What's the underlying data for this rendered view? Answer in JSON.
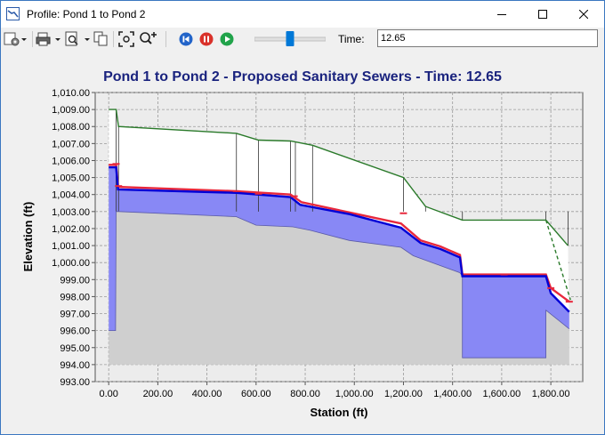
{
  "window": {
    "title": "Profile: Pond 1 to Pond 2",
    "icons": {
      "app": "profile-window-icon",
      "minimize": "minimize-icon",
      "maximize": "maximize-icon",
      "close": "close-icon"
    }
  },
  "toolbar": {
    "buttons": [
      {
        "name": "chart-settings-icon"
      },
      {
        "name": "print-icon"
      },
      {
        "name": "print-preview-icon"
      },
      {
        "name": "copy-icon"
      },
      {
        "name": "zoom-extents-icon"
      },
      {
        "name": "zoom-in-icon"
      },
      {
        "name": "rewind-button",
        "color": "#2264c9"
      },
      {
        "name": "pause-button",
        "color": "#d9312a"
      },
      {
        "name": "play-button",
        "color": "#21a34a"
      }
    ],
    "time_label": "Time:",
    "time_value": "12.65",
    "slider_fraction": 0.5
  },
  "chart_data": {
    "type": "line",
    "title": "Pond 1 to Pond 2 - Proposed Sanitary Sewers - Time: 12.65",
    "xlabel": "Station (ft)",
    "ylabel": "Elevation (ft)",
    "xlim": [
      -55,
      1930
    ],
    "ylim": [
      993,
      1010
    ],
    "xticks": [
      0,
      200,
      400,
      600,
      800,
      1000,
      1200,
      1400,
      1600,
      1800
    ],
    "xtick_labels": [
      "0.00",
      "200.00",
      "400.00",
      "600.00",
      "800.00",
      "1,000.00",
      "1,200.00",
      "1,400.00",
      "1,600.00",
      "1,800.00"
    ],
    "yticks": [
      993,
      994,
      995,
      996,
      997,
      998,
      999,
      1000,
      1001,
      1002,
      1003,
      1004,
      1005,
      1006,
      1007,
      1008,
      1009,
      1010
    ],
    "ytick_labels": [
      "993.00",
      "994.00",
      "995.00",
      "996.00",
      "997.00",
      "998.00",
      "999.00",
      "1,000.00",
      "1,001.00",
      "1,002.00",
      "1,003.00",
      "1,004.00",
      "1,005.00",
      "1,006.00",
      "1,007.00",
      "1,008.00",
      "1,009.00",
      "1,010.00"
    ],
    "grid": true,
    "colors": {
      "ground": "#cfcfcf",
      "pipe_fill": "#8888f5",
      "hgl": "#0000d6",
      "egl": "#e8283c",
      "ground_line": "#2a7a2a",
      "manhole": "#333333"
    },
    "series": [
      {
        "key": "ground_surface",
        "points": [
          [
            0,
            1009.0
          ],
          [
            30,
            1009.0
          ],
          [
            40,
            1008.0
          ],
          [
            520,
            1007.6
          ],
          [
            610,
            1007.2
          ],
          [
            740,
            1007.15
          ],
          [
            830,
            1006.9
          ],
          [
            1200,
            1005.0
          ],
          [
            1290,
            1003.3
          ],
          [
            1440,
            1002.5
          ],
          [
            1780,
            1002.5
          ],
          [
            1870,
            1001.0
          ]
        ]
      },
      {
        "key": "ground_surface_dashed",
        "points": [
          [
            1780,
            1002.5
          ],
          [
            1880,
            997.8
          ]
        ]
      },
      {
        "key": "pipe_invert",
        "points": [
          [
            0,
            996.0
          ],
          [
            28,
            996.0
          ],
          [
            30,
            1003.0
          ],
          [
            40,
            1003.0
          ],
          [
            520,
            1002.7
          ],
          [
            600,
            1002.2
          ],
          [
            750,
            1002.1
          ],
          [
            820,
            1001.9
          ],
          [
            980,
            1001.3
          ],
          [
            1190,
            1000.9
          ],
          [
            1240,
            1000.4
          ],
          [
            1430,
            999.4
          ],
          [
            1440,
            999.2
          ],
          [
            1440,
            994.4
          ],
          [
            1780,
            994.4
          ],
          [
            1780,
            997.2
          ],
          [
            1875,
            996.1
          ]
        ]
      },
      {
        "key": "hgl",
        "points": [
          [
            0,
            1005.6
          ],
          [
            30,
            1005.6
          ],
          [
            38,
            1004.3
          ],
          [
            520,
            1004.1
          ],
          [
            740,
            1003.85
          ],
          [
            780,
            1003.4
          ],
          [
            980,
            1002.85
          ],
          [
            1190,
            1002.05
          ],
          [
            1270,
            1001.15
          ],
          [
            1350,
            1000.8
          ],
          [
            1430,
            1000.3
          ],
          [
            1440,
            999.2
          ],
          [
            1780,
            999.2
          ],
          [
            1800,
            998.2
          ],
          [
            1875,
            997.1
          ]
        ]
      },
      {
        "key": "egl",
        "points": [
          [
            0,
            1005.75
          ],
          [
            30,
            1005.75
          ],
          [
            38,
            1004.45
          ],
          [
            520,
            1004.2
          ],
          [
            740,
            1004.0
          ],
          [
            785,
            1003.55
          ],
          [
            980,
            1002.95
          ],
          [
            1190,
            1002.3
          ],
          [
            1270,
            1001.3
          ],
          [
            1350,
            1000.95
          ],
          [
            1430,
            1000.45
          ],
          [
            1440,
            999.3
          ],
          [
            1780,
            999.3
          ],
          [
            1800,
            998.5
          ],
          [
            1875,
            997.7
          ]
        ]
      }
    ],
    "manholes": [
      [
        30,
        1009.0
      ],
      [
        40,
        1008.0
      ],
      [
        520,
        1007.6
      ],
      [
        610,
        1007.2
      ],
      [
        740,
        1007.15
      ],
      [
        760,
        1007.1
      ],
      [
        830,
        1006.9
      ],
      [
        1200,
        1005.0
      ],
      [
        1290,
        1003.3
      ],
      [
        1440,
        1002.5
      ],
      [
        1780,
        1002.5
      ],
      [
        1870,
        1001.0
      ]
    ],
    "egl_markers": [
      [
        30,
        1005.8
      ],
      [
        40,
        1004.5
      ],
      [
        520,
        1004.2
      ],
      [
        610,
        1004.05
      ],
      [
        755,
        1003.9
      ],
      [
        1200,
        1002.9
      ],
      [
        1610,
        999.3
      ],
      [
        1800,
        998.5
      ],
      [
        1875,
        997.7
      ]
    ]
  }
}
